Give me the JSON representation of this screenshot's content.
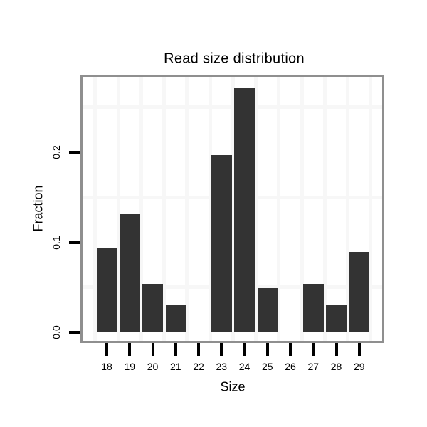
{
  "chart_data": {
    "type": "bar",
    "title": "Read size distribution",
    "xlabel": "Size",
    "ylabel": "Fraction",
    "categories": [
      "18",
      "19",
      "20",
      "21",
      "22",
      "23",
      "24",
      "25",
      "26",
      "27",
      "28",
      "29"
    ],
    "values": [
      0.093,
      0.131,
      0.054,
      0.03,
      0,
      0.197,
      0.272,
      0.05,
      0,
      0.054,
      0.03,
      0.089
    ],
    "yticks": {
      "values": [
        0.0,
        0.1,
        0.2
      ],
      "labels": [
        "0.0",
        "0.1",
        "0.2"
      ]
    },
    "ylim": [
      -0.0095,
      0.284
    ],
    "grid": {
      "h_lines": [
        0.05,
        0.15,
        0.25
      ],
      "v_lines": "between-categories",
      "visible": true
    },
    "legend": "none",
    "colors": {
      "bar": "#333333",
      "grid": "#f7f7f7",
      "panel_bg": "#ffffff",
      "panel_border": "#8f8f8f",
      "tick": "#000000",
      "text": "#000000"
    }
  }
}
